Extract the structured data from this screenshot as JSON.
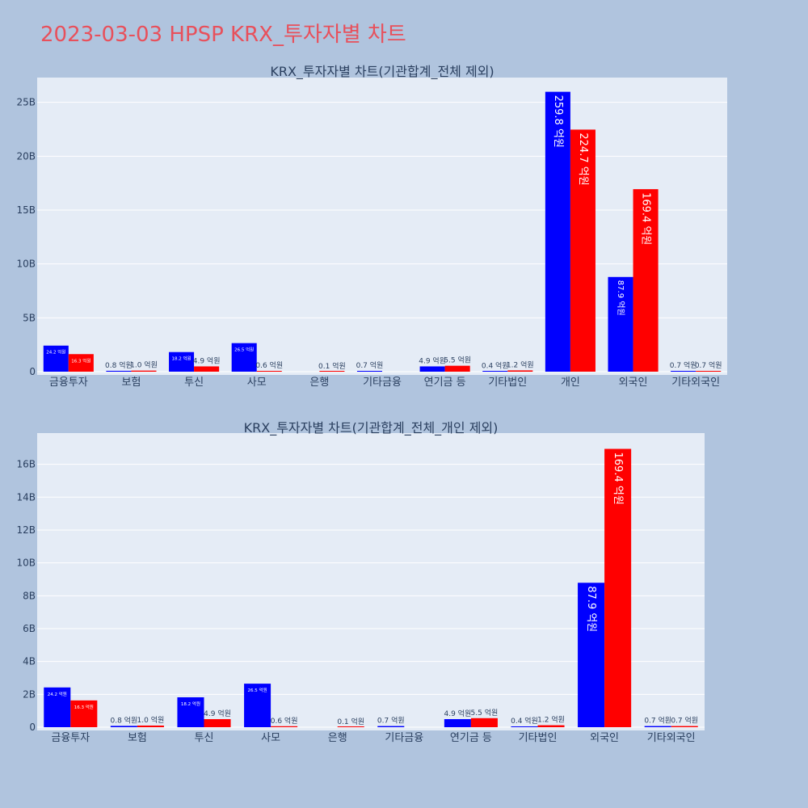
{
  "page": {
    "title": "2023-03-03 HPSP KRX_투자자별 차트"
  },
  "colors": {
    "page_bg": "#b0c4de",
    "plot_bg": "#e5ecf6",
    "grid": "#ffffff",
    "title": "#e8505b",
    "text": "#2a3f5f",
    "series_blue": "#0000ff",
    "series_red": "#ff0000"
  },
  "chart_data": [
    {
      "type": "bar",
      "title": "KRX_투자자별 차트(기관합계_전체 제외)",
      "categories": [
        "금융투자",
        "보험",
        "투신",
        "사모",
        "은행",
        "기타금융",
        "연기금 등",
        "기타법인",
        "개인",
        "외국인",
        "기타외국인"
      ],
      "series": [
        {
          "color": "#0000ff",
          "values": [
            2420000000,
            80000000,
            1820000000,
            2650000000,
            0,
            70000000,
            490000000,
            40000000,
            25980000000,
            8790000000,
            70000000
          ],
          "labels": [
            "24.2 억원",
            "0.8 억원",
            "18.2 억원",
            "26.5 억원",
            "",
            "0.7 억원",
            "4.9 억원",
            "0.4 억원",
            "259.8 억원",
            "87.9 억원",
            "0.7 억원"
          ]
        },
        {
          "color": "#ff0000",
          "values": [
            1630000000,
            100000000,
            490000000,
            60000000,
            10000000,
            0,
            550000000,
            120000000,
            22470000000,
            16940000000,
            70000000
          ],
          "labels": [
            "16.3 억원",
            "1.0 억원",
            "4.9 억원",
            "0.6 억원",
            "0.1 억원",
            "",
            "5.5 억원",
            "1.2 억원",
            "224.7 억원",
            "169.4 억원",
            "0.7 억원"
          ]
        }
      ],
      "y_ticks": [
        0,
        5000000000,
        10000000000,
        15000000000,
        20000000000,
        25000000000
      ],
      "y_tick_labels": [
        "0",
        "5B",
        "10B",
        "15B",
        "20B",
        "25B"
      ],
      "ylim": [
        0,
        27300000000
      ],
      "grid": true
    },
    {
      "type": "bar",
      "title": "KRX_투자자별 차트(기관합계_전체_개인 제외)",
      "categories": [
        "금융투자",
        "보험",
        "투신",
        "사모",
        "은행",
        "기타금융",
        "연기금 등",
        "기타법인",
        "외국인",
        "기타외국인"
      ],
      "series": [
        {
          "color": "#0000ff",
          "values": [
            2420000000,
            80000000,
            1820000000,
            2650000000,
            0,
            70000000,
            490000000,
            40000000,
            8790000000,
            70000000
          ],
          "labels": [
            "24.2 억원",
            "0.8 억원",
            "18.2 억원",
            "26.5 억원",
            "",
            "0.7 억원",
            "4.9 억원",
            "0.4 억원",
            "87.9 억원",
            "0.7 억원"
          ]
        },
        {
          "color": "#ff0000",
          "values": [
            1630000000,
            100000000,
            490000000,
            60000000,
            10000000,
            0,
            550000000,
            120000000,
            16940000000,
            70000000
          ],
          "labels": [
            "16.3 억원",
            "1.0 억원",
            "4.9 억원",
            "0.6 억원",
            "0.1 억원",
            "",
            "5.5 억원",
            "1.2 억원",
            "169.4 억원",
            "0.7 억원"
          ]
        }
      ],
      "y_ticks": [
        0,
        2000000000,
        4000000000,
        6000000000,
        8000000000,
        10000000000,
        12000000000,
        14000000000,
        16000000000
      ],
      "y_tick_labels": [
        "0",
        "2B",
        "4B",
        "6B",
        "8B",
        "10B",
        "12B",
        "14B",
        "16B"
      ],
      "ylim": [
        0,
        17900000000
      ],
      "grid": true
    }
  ]
}
